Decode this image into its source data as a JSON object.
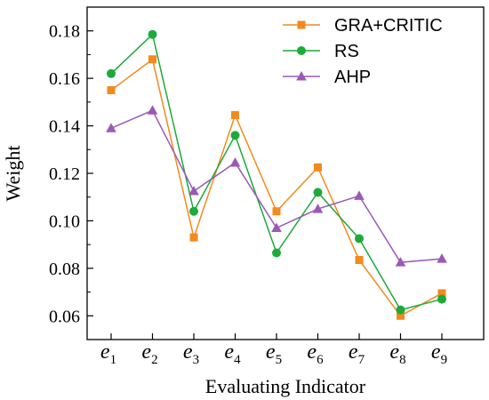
{
  "chart_data": {
    "type": "line",
    "xlabel": "Evaluating Indicator",
    "ylabel": "Weight",
    "categories": [
      {
        "base": "e",
        "sub": "1"
      },
      {
        "base": "e",
        "sub": "2"
      },
      {
        "base": "e",
        "sub": "3"
      },
      {
        "base": "e",
        "sub": "4"
      },
      {
        "base": "e",
        "sub": "5"
      },
      {
        "base": "e",
        "sub": "6"
      },
      {
        "base": "e",
        "sub": "7"
      },
      {
        "base": "e",
        "sub": "8"
      },
      {
        "base": "e",
        "sub": "9"
      }
    ],
    "ylim": [
      0.05,
      0.19
    ],
    "yticks": [
      0.06,
      0.08,
      0.1,
      0.12,
      0.14,
      0.16,
      0.18
    ],
    "ytick_labels": [
      "0.06",
      "0.08",
      "0.10",
      "0.12",
      "0.14",
      "0.16",
      "0.18"
    ],
    "legend_position": "top-right",
    "grid": false,
    "series": [
      {
        "name": "GRA+CRITIC",
        "marker": "square",
        "color": "#F28A1E",
        "values": [
          0.155,
          0.168,
          0.093,
          0.1445,
          0.104,
          0.1225,
          0.0835,
          0.06,
          0.0695
        ]
      },
      {
        "name": "RS",
        "marker": "circle",
        "color": "#1DAA3A",
        "values": [
          0.162,
          0.1785,
          0.104,
          0.136,
          0.0865,
          0.112,
          0.0925,
          0.0625,
          0.067
        ]
      },
      {
        "name": "AHP",
        "marker": "triangle",
        "color": "#9B59B6",
        "values": [
          0.139,
          0.1465,
          0.1125,
          0.1245,
          0.097,
          0.105,
          0.1105,
          0.0825,
          0.084
        ]
      }
    ]
  }
}
